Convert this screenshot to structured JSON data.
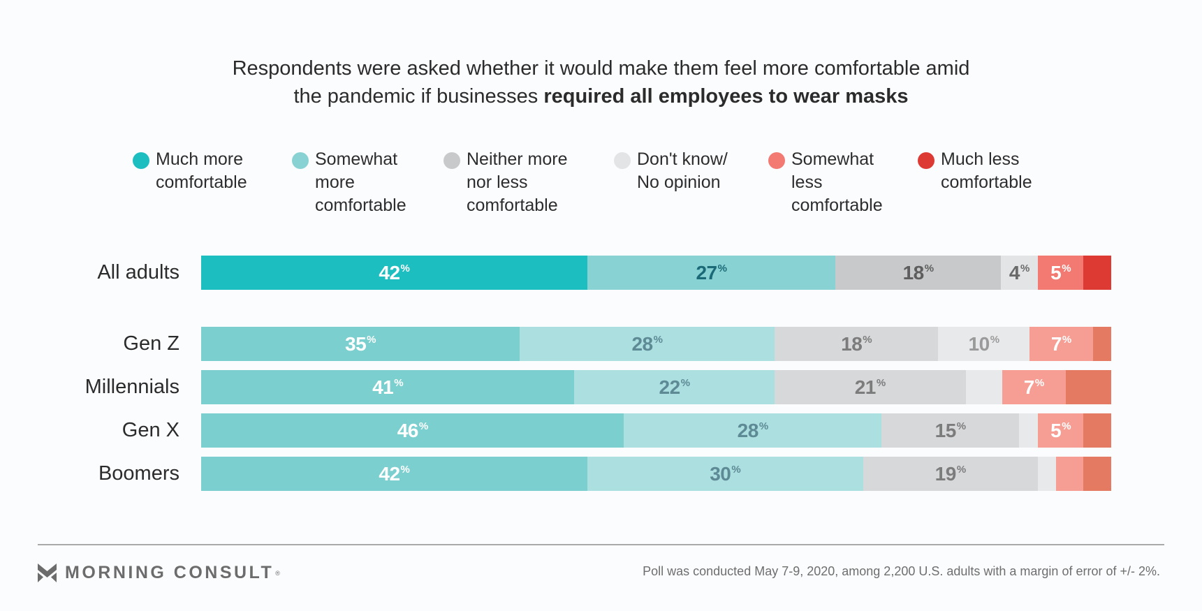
{
  "title": {
    "line1": "Respondents were asked whether it would make them feel more comfortable amid",
    "line2_plain": "the pandemic if businesses ",
    "line2_bold": "required all employees to wear masks"
  },
  "legend": [
    {
      "label": "Much more\ncomfortable",
      "color": "#1dbec0"
    },
    {
      "label": "Somewhat\nmore\ncomfortable",
      "color": "#89d2d4"
    },
    {
      "label": "Neither more\nnor less\ncomfortable",
      "color": "#c8c9cb"
    },
    {
      "label": "Don't know/\nNo opinion",
      "color": "#e3e4e6"
    },
    {
      "label": "Somewhat\nless\ncomfortable",
      "color": "#f27a72"
    },
    {
      "label": "Much less\ncomfortable",
      "color": "#de3a34"
    }
  ],
  "chart_data": {
    "type": "bar",
    "orientation": "horizontal",
    "stacked": true,
    "title": "Respondents were asked whether it would make them feel more comfortable amid the pandemic if businesses required all employees to wear masks",
    "categories": [
      "All adults",
      "Gen Z",
      "Millennials",
      "Gen X",
      "Boomers"
    ],
    "series": [
      {
        "name": "Much more comfortable",
        "values": [
          42,
          35,
          41,
          46,
          42
        ],
        "labels": [
          "42",
          "35",
          "41",
          "46",
          "42"
        ]
      },
      {
        "name": "Somewhat more comfortable",
        "values": [
          27,
          28,
          22,
          28,
          30
        ],
        "labels": [
          "27",
          "28",
          "22",
          "28",
          "30"
        ]
      },
      {
        "name": "Neither more nor less comfortable",
        "values": [
          18,
          18,
          21,
          15,
          19
        ],
        "labels": [
          "18",
          "18",
          "21",
          "15",
          "19"
        ]
      },
      {
        "name": "Don't know/No opinion",
        "values": [
          4,
          10,
          4,
          2,
          2
        ],
        "labels": [
          "4",
          "10",
          "",
          "",
          ""
        ]
      },
      {
        "name": "Somewhat less comfortable",
        "values": [
          5,
          7,
          7,
          5,
          3
        ],
        "labels": [
          "5",
          "7",
          "7",
          "5",
          ""
        ]
      },
      {
        "name": "Much less comfortable",
        "values": [
          3,
          2,
          5,
          3,
          3
        ],
        "labels": [
          "",
          "",
          "",
          "",
          ""
        ]
      }
    ],
    "value_suffix": "%",
    "xlim": [
      0,
      100
    ],
    "legend_position": "top",
    "grid": false
  },
  "footer": {
    "brand": "MORNING CONSULT",
    "registered_mark": "®",
    "note": "Poll was conducted May 7-9, 2020, among 2,200 U.S. adults with a margin of error of +/- 2%."
  }
}
